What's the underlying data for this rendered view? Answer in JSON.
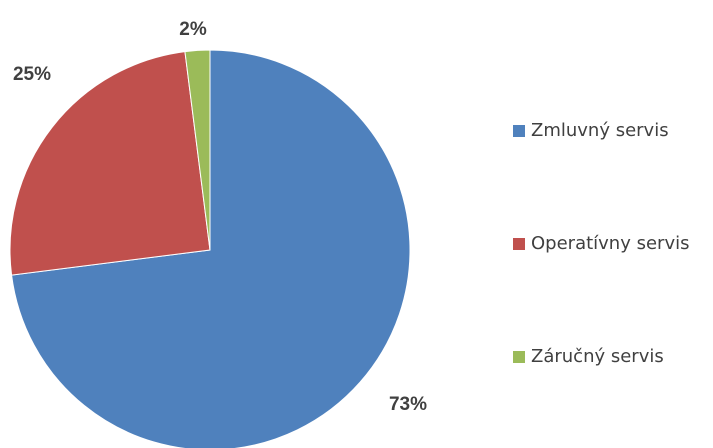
{
  "chart_data": {
    "type": "pie",
    "categories": [
      "Zmluvný servis",
      "Operatívny servis",
      "Záručný servis"
    ],
    "values": [
      73,
      25,
      2
    ],
    "value_labels": [
      "73%",
      "25%",
      "2%"
    ],
    "colors": [
      "#4f81bd",
      "#c0504d",
      "#9bbb59"
    ],
    "legend": "right"
  }
}
